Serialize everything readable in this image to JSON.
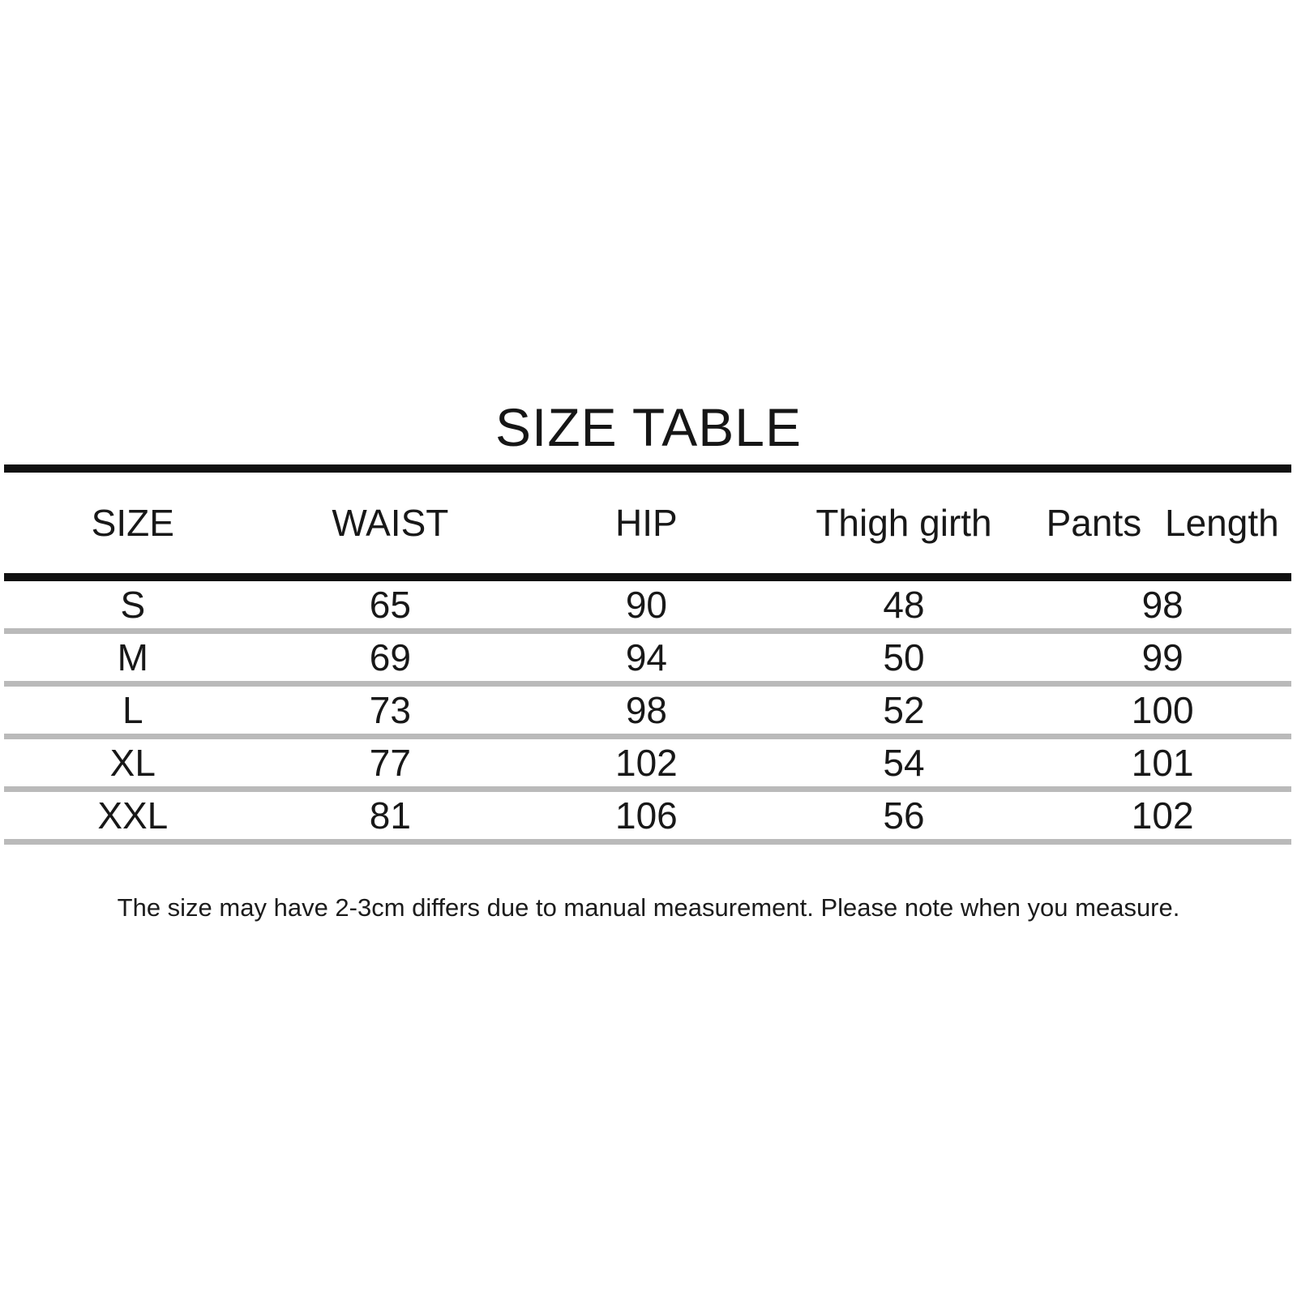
{
  "title": "SIZE TABLE",
  "chart_data": {
    "type": "table",
    "title": "SIZE TABLE",
    "columns": [
      "SIZE",
      "WAIST",
      "HIP",
      "Thigh girth",
      "Pants Length"
    ],
    "rows": [
      [
        "S",
        "65",
        "90",
        "48",
        "98"
      ],
      [
        "M",
        "69",
        "94",
        "50",
        "99"
      ],
      [
        "L",
        "73",
        "98",
        "52",
        "100"
      ],
      [
        "XL",
        "77",
        "102",
        "54",
        "101"
      ],
      [
        "XXL",
        "81",
        "106",
        "56",
        "102"
      ]
    ],
    "footnote": "The size may have 2-3cm differs due to manual measurement. Please note when you measure.",
    "layout": {
      "units": "cm",
      "header_divider": "thick-black",
      "row_divider": "thin-gray"
    }
  },
  "colors": {
    "text": "#1a1a1a",
    "rule_dark": "#101010",
    "rule_light": "#bababa",
    "background": "#ffffff"
  }
}
